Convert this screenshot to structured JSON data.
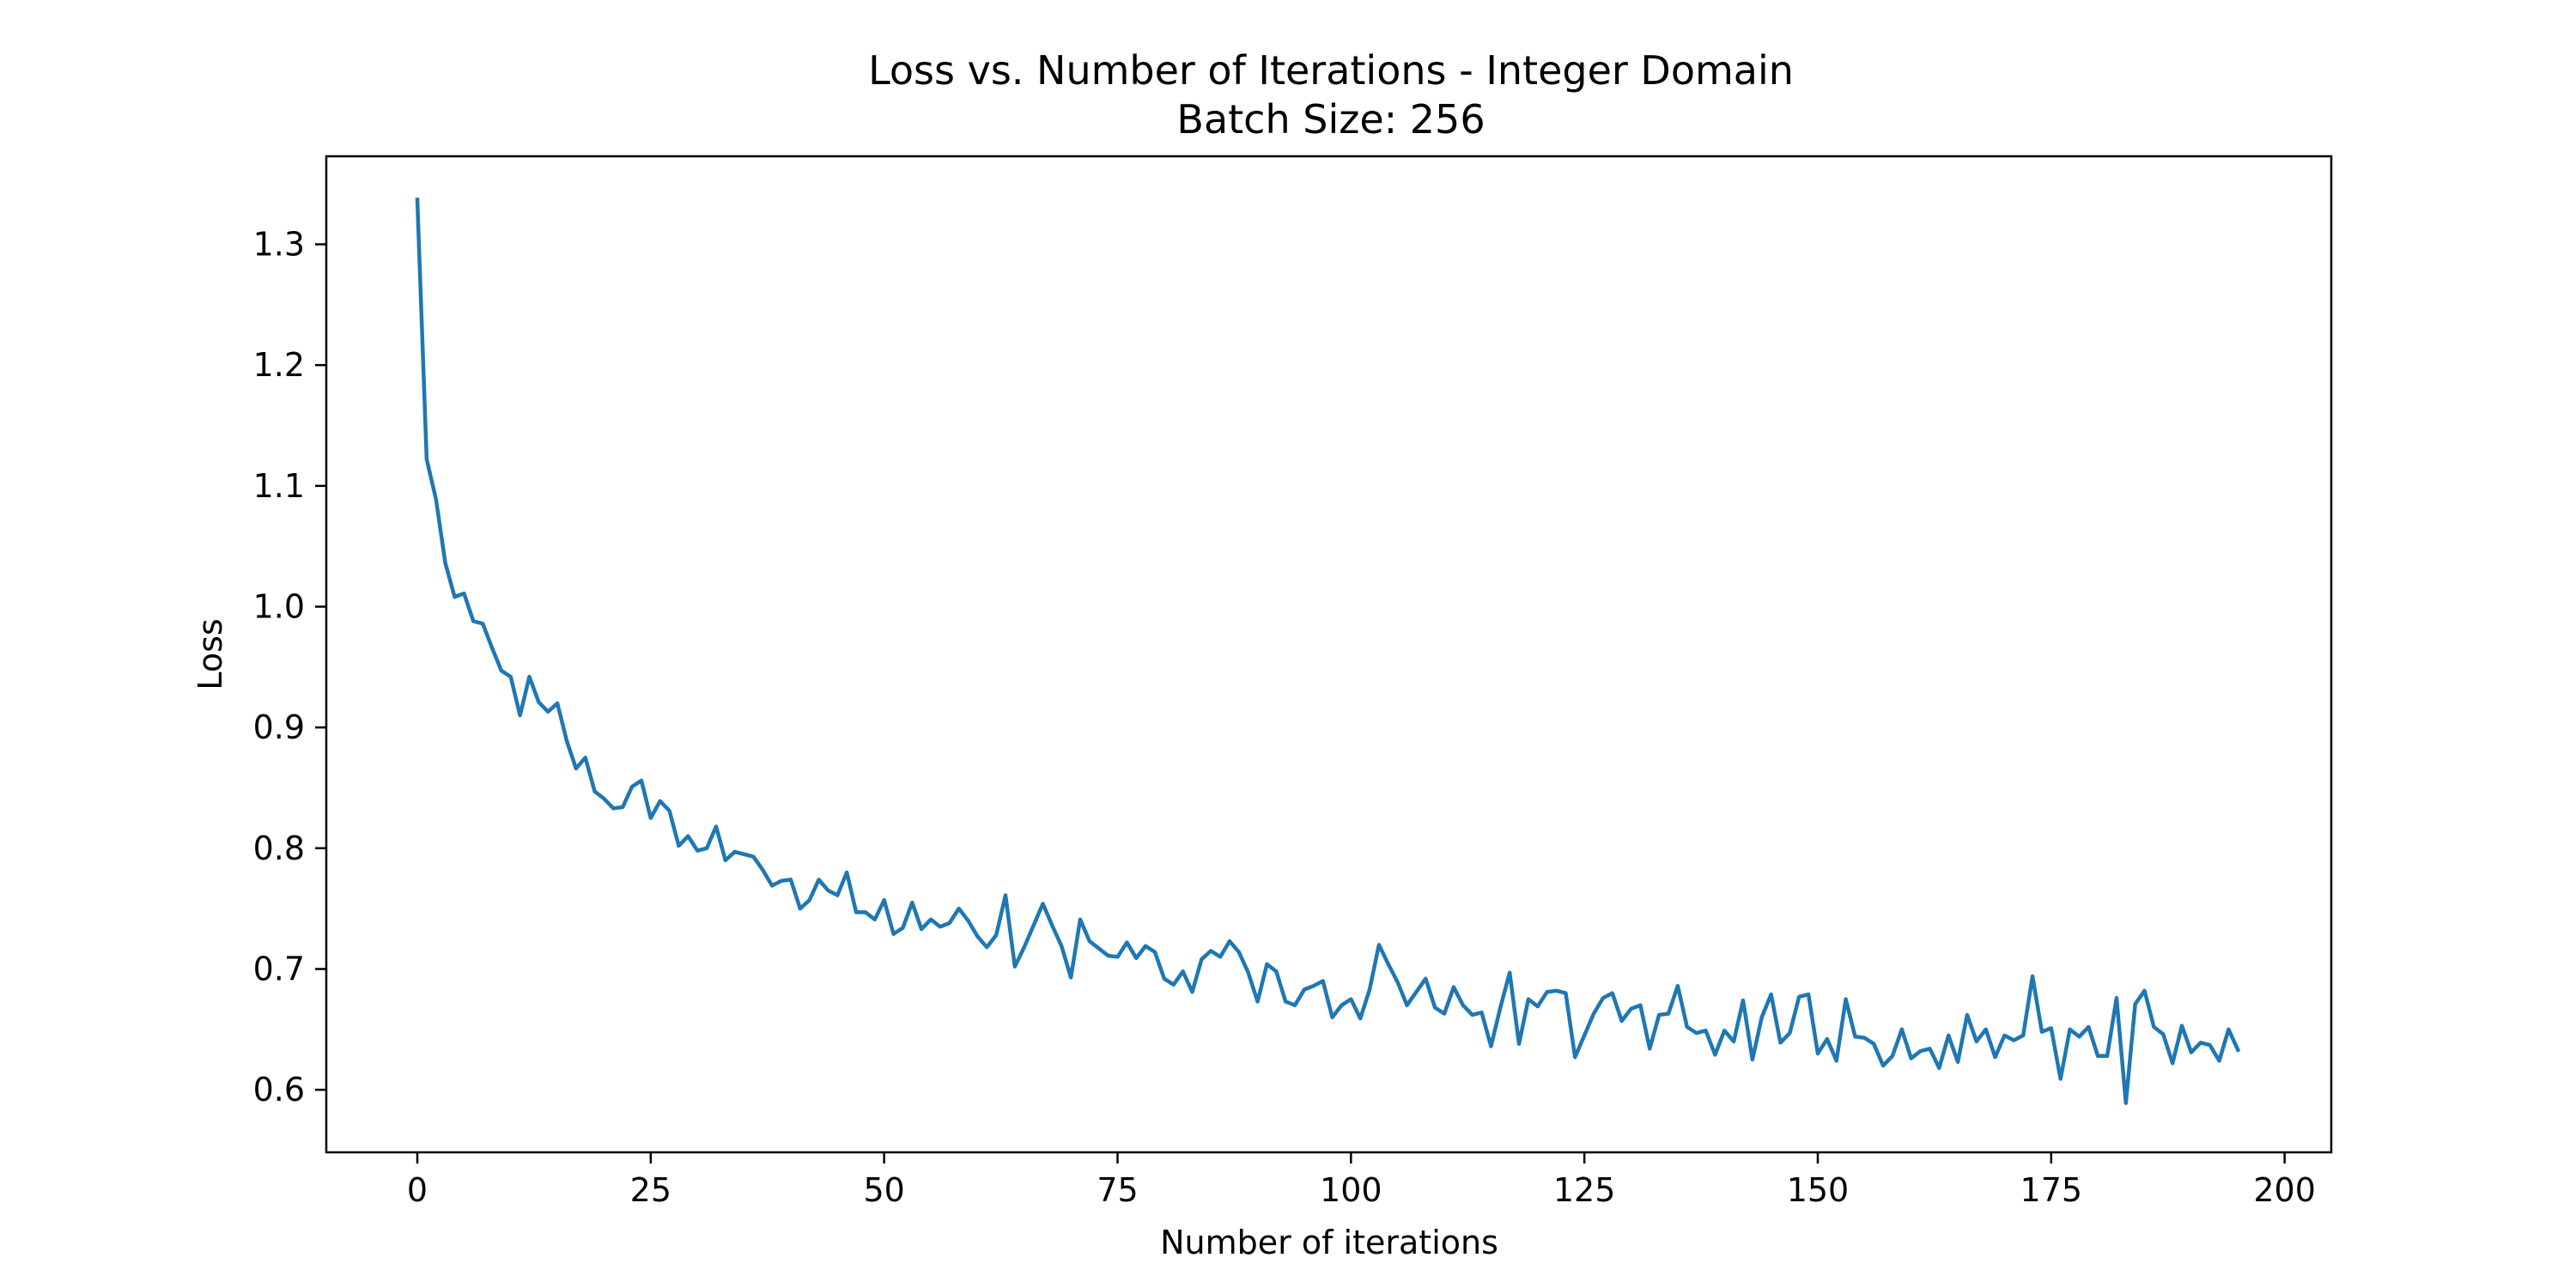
{
  "chart_data": {
    "type": "line",
    "title": "Loss vs. Number of Iterations - Integer Domain",
    "subtitle": "Batch Size: 256",
    "xlabel": "Number of iterations",
    "ylabel": "Loss",
    "xlim": [
      -9.75,
      205
    ],
    "ylim": [
      0.5482,
      1.3729
    ],
    "xticks": [
      0,
      25,
      50,
      75,
      100,
      125,
      150,
      175,
      200
    ],
    "yticks": [
      0.6,
      0.7,
      0.8,
      0.9,
      1.0,
      1.1,
      1.2,
      1.3
    ],
    "xtick_labels": [
      "0",
      "25",
      "50",
      "75",
      "100",
      "125",
      "150",
      "175",
      "200"
    ],
    "ytick_labels": [
      "0.6",
      "0.7",
      "0.8",
      "0.9",
      "1.0",
      "1.1",
      "1.2",
      "1.3"
    ],
    "grid": false,
    "legend": "none",
    "line_color": "#1f77b4",
    "series": [
      {
        "x": [
          0,
          1,
          2,
          3,
          4,
          5,
          6,
          7,
          8,
          9,
          10,
          11,
          12,
          13,
          14,
          15,
          16,
          17,
          18,
          19,
          20,
          21,
          22,
          23,
          24,
          25,
          26,
          27,
          28,
          29,
          30,
          31,
          32,
          33,
          34,
          35,
          36,
          37,
          38,
          39,
          40,
          41,
          42,
          43,
          44,
          45,
          46,
          47,
          48,
          49,
          50,
          51,
          52,
          53,
          54,
          55,
          56,
          57,
          58,
          59,
          60,
          61,
          62,
          63,
          64,
          65,
          66,
          67,
          68,
          69,
          70,
          71,
          72,
          73,
          74,
          75,
          76,
          77,
          78,
          79,
          80,
          81,
          82,
          83,
          84,
          85,
          86,
          87,
          88,
          89,
          90,
          91,
          92,
          93,
          94,
          95,
          96,
          97,
          98,
          99,
          100,
          101,
          102,
          103,
          104,
          105,
          106,
          107,
          108,
          109,
          110,
          111,
          112,
          113,
          114,
          115,
          116,
          117,
          118,
          119,
          120,
          121,
          122,
          123,
          124,
          125,
          126,
          127,
          128,
          129,
          130,
          131,
          132,
          133,
          134,
          135,
          136,
          137,
          138,
          139,
          140,
          141,
          142,
          143,
          144,
          145,
          146,
          147,
          148,
          149,
          150,
          151,
          152,
          153,
          154,
          155,
          156,
          157,
          158,
          159,
          160,
          161,
          162,
          163,
          164,
          165,
          166,
          167,
          168,
          169,
          170,
          171,
          172,
          173,
          174,
          175,
          176,
          177,
          178,
          179,
          180,
          181,
          182,
          183,
          184,
          185,
          186,
          187,
          188,
          189,
          190,
          191,
          192,
          193,
          194,
          195
        ],
        "values": [
          1.337,
          1.122,
          1.089,
          1.036,
          1.008,
          1.011,
          0.988,
          0.986,
          0.966,
          0.947,
          0.942,
          0.91,
          0.942,
          0.921,
          0.913,
          0.92,
          0.889,
          0.866,
          0.875,
          0.847,
          0.841,
          0.833,
          0.834,
          0.851,
          0.856,
          0.825,
          0.839,
          0.831,
          0.802,
          0.81,
          0.798,
          0.8,
          0.818,
          0.79,
          0.797,
          0.795,
          0.793,
          0.782,
          0.769,
          0.773,
          0.774,
          0.75,
          0.757,
          0.774,
          0.765,
          0.761,
          0.78,
          0.747,
          0.747,
          0.741,
          0.757,
          0.729,
          0.734,
          0.755,
          0.733,
          0.741,
          0.735,
          0.738,
          0.75,
          0.74,
          0.727,
          0.718,
          0.728,
          0.761,
          0.702,
          0.718,
          0.736,
          0.754,
          0.736,
          0.719,
          0.693,
          0.741,
          0.723,
          0.717,
          0.711,
          0.71,
          0.722,
          0.709,
          0.719,
          0.714,
          0.692,
          0.687,
          0.698,
          0.681,
          0.708,
          0.715,
          0.71,
          0.723,
          0.714,
          0.697,
          0.673,
          0.704,
          0.698,
          0.673,
          0.67,
          0.683,
          0.686,
          0.69,
          0.66,
          0.67,
          0.675,
          0.659,
          0.683,
          0.72,
          0.704,
          0.689,
          0.67,
          0.681,
          0.692,
          0.668,
          0.663,
          0.685,
          0.67,
          0.662,
          0.664,
          0.636,
          0.668,
          0.697,
          0.638,
          0.675,
          0.669,
          0.681,
          0.682,
          0.68,
          0.627,
          0.645,
          0.663,
          0.676,
          0.68,
          0.657,
          0.667,
          0.67,
          0.634,
          0.662,
          0.663,
          0.686,
          0.652,
          0.647,
          0.649,
          0.629,
          0.649,
          0.64,
          0.674,
          0.625,
          0.66,
          0.679,
          0.639,
          0.647,
          0.677,
          0.679,
          0.63,
          0.642,
          0.624,
          0.675,
          0.644,
          0.643,
          0.638,
          0.62,
          0.628,
          0.65,
          0.626,
          0.632,
          0.634,
          0.618,
          0.645,
          0.623,
          0.662,
          0.64,
          0.65,
          0.627,
          0.645,
          0.641,
          0.645,
          0.694,
          0.648,
          0.651,
          0.609,
          0.65,
          0.644,
          0.652,
          0.628,
          0.628,
          0.676,
          0.589,
          0.671,
          0.682,
          0.652,
          0.646,
          0.622,
          0.653,
          0.631,
          0.639,
          0.637,
          0.624,
          0.65,
          0.633
        ]
      }
    ]
  }
}
